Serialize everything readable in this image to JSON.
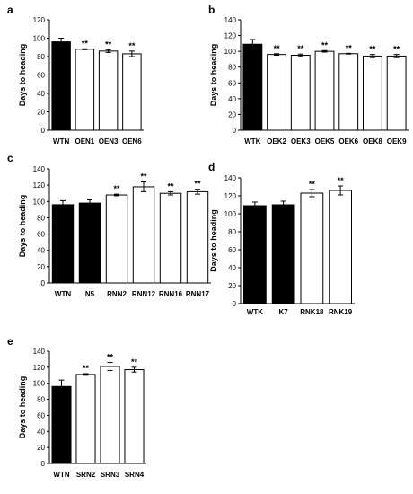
{
  "chart_data": [
    {
      "panel": "a",
      "type": "bar",
      "categories": [
        "WTN",
        "OEN1",
        "OEN3",
        "OEN6"
      ],
      "values": [
        96,
        88,
        86,
        83
      ],
      "errors": [
        4,
        0.5,
        1.5,
        3
      ],
      "fills": [
        "#000000",
        "#ffffff",
        "#ffffff",
        "#ffffff"
      ],
      "significance": [
        "",
        "**",
        "**",
        "**"
      ],
      "ylabel": "Days to heading",
      "ylim": [
        0,
        120
      ],
      "yticks": [
        0,
        20,
        40,
        60,
        80,
        100,
        120
      ]
    },
    {
      "panel": "b",
      "type": "bar",
      "categories": [
        "WTK",
        "OEK2",
        "OEK3",
        "OEK5",
        "OEK6",
        "OEK8",
        "OEK9"
      ],
      "values": [
        109,
        96,
        95,
        100,
        97,
        94,
        94
      ],
      "errors": [
        6,
        1,
        1.5,
        1,
        0.5,
        2,
        2
      ],
      "fills": [
        "#000000",
        "#ffffff",
        "#ffffff",
        "#ffffff",
        "#ffffff",
        "#ffffff",
        "#ffffff"
      ],
      "significance": [
        "",
        "**",
        "**",
        "**",
        "**",
        "**",
        "**"
      ],
      "ylabel": "Days to heading",
      "ylim": [
        0,
        140
      ],
      "yticks": [
        0,
        20,
        40,
        60,
        80,
        100,
        120,
        140
      ]
    },
    {
      "panel": "c",
      "type": "bar",
      "categories": [
        "WTN",
        "N5",
        "RNN2",
        "RNN12",
        "RNN16",
        "RNN17"
      ],
      "values": [
        96,
        98,
        108,
        118,
        110,
        112
      ],
      "errors": [
        5,
        4,
        1,
        6,
        2,
        3
      ],
      "fills": [
        "#000000",
        "#000000",
        "#ffffff",
        "#ffffff",
        "#ffffff",
        "#ffffff"
      ],
      "significance": [
        "",
        "",
        "**",
        "**",
        "**",
        "**"
      ],
      "ylabel": "Days to heading",
      "ylim": [
        0,
        140
      ],
      "yticks": [
        0,
        20,
        40,
        60,
        80,
        100,
        120,
        140
      ]
    },
    {
      "panel": "d",
      "type": "bar",
      "categories": [
        "WTK",
        "K7",
        "RNK18",
        "RNK19"
      ],
      "values": [
        109,
        110,
        123,
        126
      ],
      "errors": [
        4,
        4,
        4,
        5
      ],
      "fills": [
        "#000000",
        "#000000",
        "#ffffff",
        "#ffffff"
      ],
      "significance": [
        "",
        "",
        "**",
        "**"
      ],
      "ylabel": "Days to heading",
      "ylim": [
        0,
        140
      ],
      "yticks": [
        0,
        20,
        40,
        60,
        80,
        100,
        120,
        140
      ]
    },
    {
      "panel": "e",
      "type": "bar",
      "categories": [
        "WTN",
        "SRN2",
        "SRN3",
        "SRN4"
      ],
      "values": [
        96,
        111,
        121,
        117
      ],
      "errors": [
        8,
        1,
        5,
        3
      ],
      "fills": [
        "#000000",
        "#ffffff",
        "#ffffff",
        "#ffffff"
      ],
      "significance": [
        "",
        "**",
        "**",
        "**"
      ],
      "ylabel": "Days to heading",
      "ylim": [
        0,
        140
      ],
      "yticks": [
        0,
        20,
        40,
        60,
        80,
        100,
        120,
        140
      ]
    }
  ]
}
